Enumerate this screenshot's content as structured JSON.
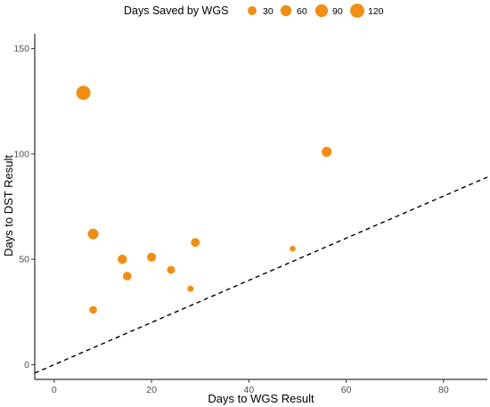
{
  "chart_data": {
    "type": "scatter",
    "title": "",
    "xlabel": "Days to WGS Result",
    "ylabel": "Days to DST Result",
    "xlim": [
      -4,
      89
    ],
    "ylim": [
      -7,
      157
    ],
    "x_ticks": [
      0,
      20,
      40,
      60,
      80
    ],
    "y_ticks": [
      0,
      50,
      100,
      150
    ],
    "x_tick_labels": [
      "0",
      "20",
      "40",
      "60",
      "80"
    ],
    "y_tick_labels": [
      "0",
      "50",
      "100",
      "150"
    ],
    "grid": false,
    "point_color": "#F28E13",
    "reference_line": {
      "type": "identity",
      "style": "dashed",
      "color": "#000000"
    },
    "legend": {
      "title": "Days Saved by WGS",
      "placement": "top",
      "values": [
        30,
        60,
        90,
        120
      ],
      "labels": [
        "30",
        "60",
        "90",
        "120"
      ]
    },
    "points": [
      {
        "x": 6,
        "y": 129,
        "size": 123
      },
      {
        "x": 56,
        "y": 101,
        "size": 45
      },
      {
        "x": 8,
        "y": 62,
        "size": 54
      },
      {
        "x": 29,
        "y": 58,
        "size": 29
      },
      {
        "x": 49,
        "y": 55,
        "size": 6
      },
      {
        "x": 20,
        "y": 51,
        "size": 31
      },
      {
        "x": 14,
        "y": 50,
        "size": 36
      },
      {
        "x": 24,
        "y": 45,
        "size": 21
      },
      {
        "x": 15,
        "y": 42,
        "size": 27
      },
      {
        "x": 28,
        "y": 36,
        "size": 8
      },
      {
        "x": 8,
        "y": 26,
        "size": 18
      }
    ]
  }
}
